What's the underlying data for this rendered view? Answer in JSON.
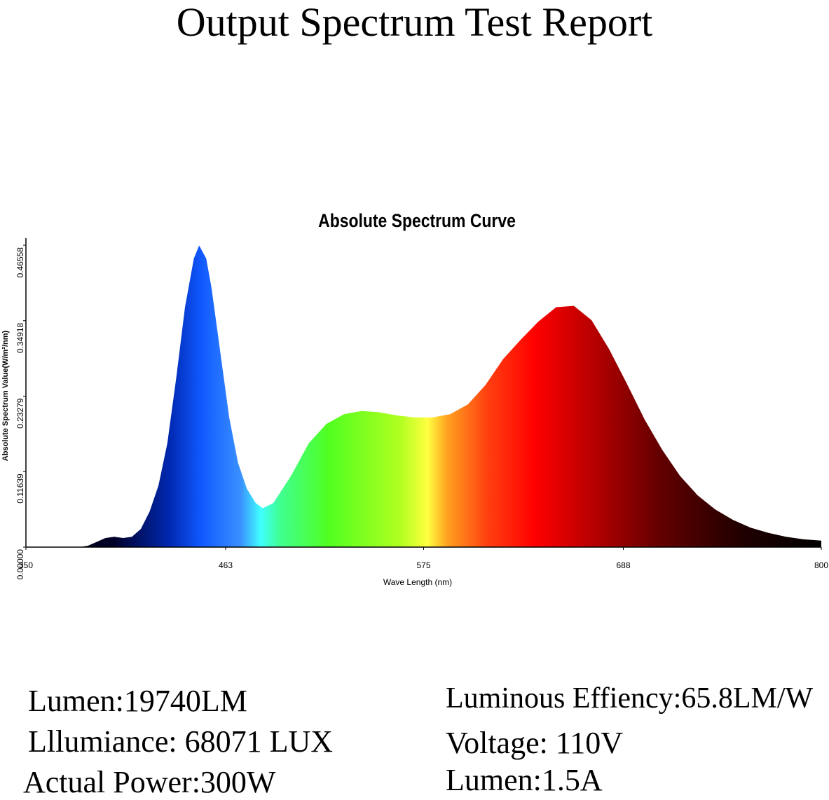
{
  "page_title": "Output Spectrum Test Report",
  "specs": {
    "left": [
      "Lumen:19740LM",
      "Lllumiance: 68071 LUX",
      "Actual Power:300W"
    ],
    "right": [
      "Luminous Effiency:65.8LM/W",
      "Voltage: 110V",
      "Lumen:1.5A"
    ]
  },
  "chart_data": {
    "type": "area",
    "title": "Absolute Spectrum Curve",
    "x_label": "Wave Length (nm)",
    "y_label": "Absolute Spectrum Value(W/m²/nm)",
    "x": [
      350,
      380,
      385,
      390,
      395,
      400,
      405,
      410,
      415,
      420,
      425,
      430,
      435,
      440,
      445,
      448,
      452,
      455,
      460,
      465,
      470,
      475,
      480,
      484,
      490,
      500,
      510,
      520,
      530,
      540,
      550,
      560,
      570,
      580,
      590,
      600,
      610,
      620,
      630,
      640,
      650,
      660,
      670,
      680,
      690,
      700,
      710,
      720,
      730,
      740,
      750,
      760,
      770,
      780,
      790,
      800
    ],
    "values": [
      0,
      0,
      0.002,
      0.008,
      0.014,
      0.016,
      0.014,
      0.016,
      0.028,
      0.055,
      0.095,
      0.16,
      0.26,
      0.37,
      0.445,
      0.465,
      0.445,
      0.4,
      0.3,
      0.2,
      0.13,
      0.09,
      0.068,
      0.06,
      0.068,
      0.11,
      0.16,
      0.19,
      0.205,
      0.21,
      0.208,
      0.203,
      0.2,
      0.2,
      0.205,
      0.22,
      0.25,
      0.29,
      0.32,
      0.348,
      0.37,
      0.372,
      0.35,
      0.305,
      0.252,
      0.197,
      0.15,
      0.11,
      0.08,
      0.058,
      0.042,
      0.03,
      0.022,
      0.016,
      0.012,
      0.01
    ],
    "xlim": [
      350,
      800
    ],
    "xticks": [
      350,
      463,
      575,
      688,
      800
    ],
    "ylim": [
      0,
      0.46558
    ],
    "yticks": [
      {
        "value": 0,
        "label": "0.00000"
      },
      0.11639,
      0.23279,
      0.34918,
      0.46558
    ],
    "grid": false
  }
}
